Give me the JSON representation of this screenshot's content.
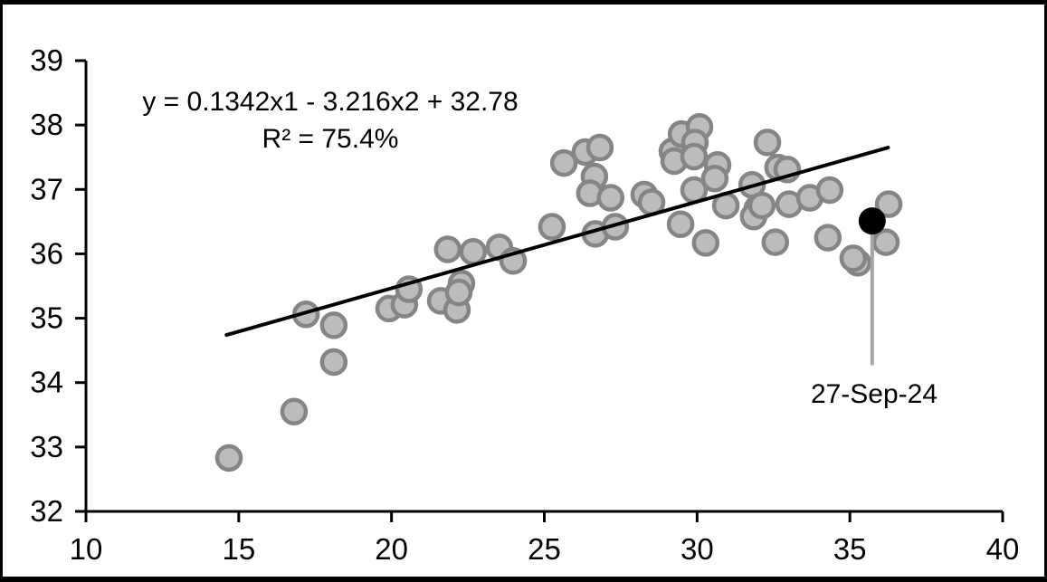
{
  "chart_data": {
    "type": "scatter",
    "title": "",
    "xlabel": "",
    "ylabel": "",
    "equation": {
      "line1": "y = 0.1342x1 - 3.216x2 + 32.78",
      "line2": "R² = 75.4%"
    },
    "axes": {
      "xlim": [
        10,
        40
      ],
      "ylim": [
        32,
        39
      ],
      "x_ticks": [
        10,
        15,
        20,
        25,
        30,
        35,
        40
      ],
      "y_ticks": [
        32,
        33,
        34,
        35,
        36,
        37,
        38,
        39
      ],
      "grid": "off",
      "axis_color": "#000000"
    },
    "series": [
      {
        "name": "observations",
        "marker": "circle",
        "fill": "#bcbcbc",
        "stroke": "#858585",
        "points": [
          [
            14.68,
            32.83
          ],
          [
            16.81,
            33.55
          ],
          [
            17.2,
            35.06
          ],
          [
            18.11,
            34.89
          ],
          [
            18.11,
            34.32
          ],
          [
            19.92,
            35.15
          ],
          [
            20.42,
            35.21
          ],
          [
            20.57,
            35.45
          ],
          [
            21.61,
            35.27
          ],
          [
            22.14,
            35.13
          ],
          [
            22.29,
            35.54
          ],
          [
            22.2,
            35.4
          ],
          [
            21.84,
            36.07
          ],
          [
            22.67,
            36.03
          ],
          [
            23.53,
            36.1
          ],
          [
            23.98,
            35.89
          ],
          [
            25.25,
            36.42
          ],
          [
            25.64,
            37.41
          ],
          [
            26.34,
            37.58
          ],
          [
            26.82,
            37.65
          ],
          [
            26.64,
            37.2
          ],
          [
            26.49,
            36.94
          ],
          [
            27.17,
            36.87
          ],
          [
            26.67,
            36.31
          ],
          [
            27.32,
            36.42
          ],
          [
            28.27,
            36.92
          ],
          [
            28.51,
            36.8
          ],
          [
            29.9,
            36.99
          ],
          [
            29.19,
            37.59
          ],
          [
            29.25,
            37.44
          ],
          [
            29.49,
            37.86
          ],
          [
            30.08,
            37.97
          ],
          [
            29.93,
            37.73
          ],
          [
            29.9,
            37.51
          ],
          [
            30.67,
            37.38
          ],
          [
            30.58,
            37.17
          ],
          [
            30.94,
            36.75
          ],
          [
            31.8,
            37.07
          ],
          [
            31.97,
            36.7
          ],
          [
            31.85,
            36.58
          ],
          [
            29.46,
            36.46
          ],
          [
            30.28,
            36.17
          ],
          [
            32.3,
            37.73
          ],
          [
            32.65,
            37.34
          ],
          [
            32.95,
            37.31
          ],
          [
            32.12,
            36.75
          ],
          [
            32.56,
            36.18
          ],
          [
            33.01,
            36.77
          ],
          [
            33.69,
            36.87
          ],
          [
            34.34,
            36.99
          ],
          [
            34.28,
            36.25
          ],
          [
            35.26,
            35.86
          ],
          [
            35.11,
            35.93
          ],
          [
            36.27,
            36.77
          ],
          [
            36.18,
            36.18
          ]
        ]
      },
      {
        "name": "highlighted-latest",
        "marker": "circle",
        "fill": "#000000",
        "stroke": "#000000",
        "points": [
          [
            35.73,
            36.51
          ]
        ]
      }
    ],
    "trendline": {
      "x": [
        14.6,
        36.25
      ],
      "y": [
        34.74,
        37.65
      ],
      "color": "#000000"
    },
    "annotation": {
      "label": "27-Sep-24",
      "target_point": [
        35.73,
        36.51
      ],
      "leader_end_y": 34.27,
      "leader_color": "#a6a6a6"
    }
  }
}
